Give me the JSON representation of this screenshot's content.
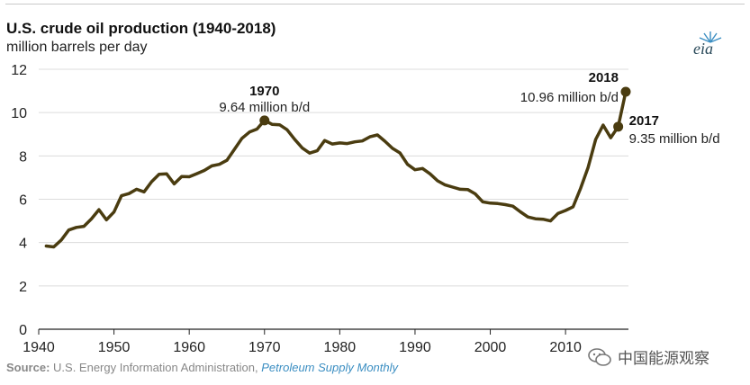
{
  "title": "U.S. crude oil production (1940-2018)",
  "subtitle": "million barrels per day",
  "logo": {
    "text": "eia"
  },
  "source": {
    "label": "Source:",
    "text": "U.S. Energy Information Administration,",
    "publication": "Petroleum Supply Monthly"
  },
  "watermark": {
    "text": "中国能源观察",
    "icon": "wechat-icon"
  },
  "colors": {
    "line": "#4a3c10",
    "grid": "#dcdcdc",
    "axis": "#222222",
    "text": "#222222"
  },
  "chart_data": {
    "type": "line",
    "title": "U.S. crude oil production (1940-2018)",
    "ylabel": "million barrels per day",
    "xlim": [
      1940,
      2018
    ],
    "ylim": [
      0,
      12
    ],
    "xticks": [
      1940,
      1950,
      1960,
      1970,
      1980,
      1990,
      2000,
      2010
    ],
    "yticks": [
      0,
      2,
      4,
      6,
      8,
      10,
      12
    ],
    "grid": "horizontal",
    "x": [
      1941,
      1942,
      1943,
      1944,
      1945,
      1946,
      1947,
      1948,
      1949,
      1950,
      1951,
      1952,
      1953,
      1954,
      1955,
      1956,
      1957,
      1958,
      1959,
      1960,
      1961,
      1962,
      1963,
      1964,
      1965,
      1966,
      1967,
      1968,
      1969,
      1970,
      1971,
      1972,
      1973,
      1974,
      1975,
      1976,
      1977,
      1978,
      1979,
      1980,
      1981,
      1982,
      1983,
      1984,
      1985,
      1986,
      1987,
      1988,
      1989,
      1990,
      1991,
      1992,
      1993,
      1994,
      1995,
      1996,
      1997,
      1998,
      1999,
      2000,
      2001,
      2002,
      2003,
      2004,
      2005,
      2006,
      2007,
      2008,
      2009,
      2010,
      2011,
      2012,
      2013,
      2014,
      2015,
      2016,
      2017,
      2018
    ],
    "y": [
      3.84,
      3.8,
      4.12,
      4.58,
      4.7,
      4.75,
      5.09,
      5.52,
      5.05,
      5.41,
      6.16,
      6.26,
      6.46,
      6.34,
      6.81,
      7.15,
      7.17,
      6.71,
      7.05,
      7.04,
      7.18,
      7.33,
      7.54,
      7.61,
      7.8,
      8.3,
      8.81,
      9.1,
      9.24,
      9.64,
      9.46,
      9.44,
      9.21,
      8.77,
      8.37,
      8.13,
      8.24,
      8.71,
      8.55,
      8.6,
      8.57,
      8.65,
      8.69,
      8.88,
      8.97,
      8.68,
      8.35,
      8.14,
      7.61,
      7.36,
      7.42,
      7.17,
      6.85,
      6.66,
      6.56,
      6.46,
      6.45,
      6.25,
      5.88,
      5.82,
      5.8,
      5.75,
      5.68,
      5.42,
      5.18,
      5.1,
      5.08,
      5.0,
      5.35,
      5.48,
      5.65,
      6.5,
      7.47,
      8.76,
      9.42,
      8.84,
      9.35,
      10.96
    ],
    "annotations": [
      {
        "year": "1970",
        "value": "9.64 million b/d",
        "x": 1970,
        "y": 9.64
      },
      {
        "year": "2017",
        "value": "9.35 million b/d",
        "x": 2017,
        "y": 9.35
      },
      {
        "year": "2018",
        "value": "10.96 million b/d",
        "x": 2018,
        "y": 10.96
      }
    ]
  }
}
